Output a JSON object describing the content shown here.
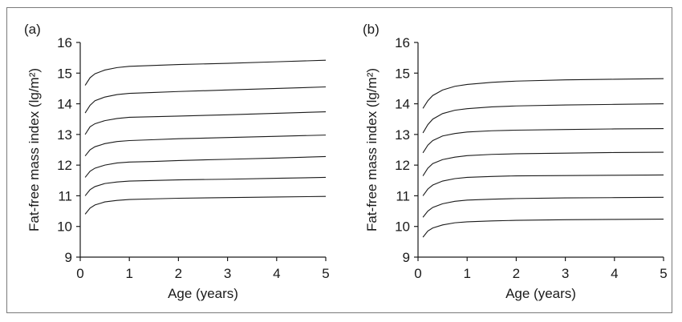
{
  "chart_data": [
    {
      "type": "line",
      "panel_label": "(a)",
      "xlabel": "Age (years)",
      "ylabel": "Fat-free mass index (lg/m²)",
      "xlim": [
        0,
        5
      ],
      "ylim": [
        9,
        16
      ],
      "x_ticks": [
        "0",
        "1",
        "2",
        "3",
        "4",
        "5"
      ],
      "y_ticks": [
        "9",
        "10",
        "11",
        "12",
        "13",
        "14",
        "15",
        "16"
      ],
      "grid": false,
      "x": [
        0.1,
        0.2,
        0.3,
        0.5,
        0.75,
        1,
        1.5,
        2,
        3,
        4,
        5
      ],
      "series": [
        {
          "values": [
            10.4,
            10.6,
            10.7,
            10.8,
            10.85,
            10.88,
            10.9,
            10.92,
            10.94,
            10.96,
            10.98
          ]
        },
        {
          "values": [
            11.0,
            11.2,
            11.3,
            11.4,
            11.45,
            11.48,
            11.5,
            11.52,
            11.54,
            11.57,
            11.6
          ]
        },
        {
          "values": [
            11.6,
            11.8,
            11.9,
            12.0,
            12.07,
            12.1,
            12.12,
            12.15,
            12.19,
            12.23,
            12.28
          ]
        },
        {
          "values": [
            12.3,
            12.5,
            12.6,
            12.7,
            12.77,
            12.8,
            12.83,
            12.86,
            12.9,
            12.94,
            12.98
          ]
        },
        {
          "values": [
            13.0,
            13.25,
            13.35,
            13.45,
            13.52,
            13.56,
            13.58,
            13.6,
            13.64,
            13.69,
            13.74
          ]
        },
        {
          "values": [
            13.7,
            13.95,
            14.1,
            14.22,
            14.3,
            14.34,
            14.37,
            14.4,
            14.45,
            14.5,
            14.55
          ]
        },
        {
          "values": [
            14.6,
            14.85,
            14.98,
            15.1,
            15.18,
            15.22,
            15.25,
            15.28,
            15.32,
            15.37,
            15.42
          ]
        }
      ]
    },
    {
      "type": "line",
      "panel_label": "(b)",
      "xlabel": "Age (years)",
      "ylabel": "Fat-free mass index (lg/m²)",
      "xlim": [
        0,
        5
      ],
      "ylim": [
        9,
        16
      ],
      "x_ticks": [
        "0",
        "1",
        "2",
        "3",
        "4",
        "5"
      ],
      "y_ticks": [
        "9",
        "10",
        "11",
        "12",
        "13",
        "14",
        "15",
        "16"
      ],
      "grid": false,
      "x": [
        0.1,
        0.2,
        0.3,
        0.5,
        0.75,
        1,
        1.5,
        2,
        3,
        4,
        5
      ],
      "series": [
        {
          "values": [
            9.65,
            9.85,
            9.95,
            10.05,
            10.12,
            10.15,
            10.18,
            10.2,
            10.22,
            10.23,
            10.24
          ]
        },
        {
          "values": [
            10.3,
            10.5,
            10.62,
            10.74,
            10.82,
            10.86,
            10.89,
            10.91,
            10.93,
            10.94,
            10.95
          ]
        },
        {
          "values": [
            11.0,
            11.22,
            11.35,
            11.48,
            11.56,
            11.6,
            11.63,
            11.65,
            11.66,
            11.67,
            11.68
          ]
        },
        {
          "values": [
            11.65,
            11.9,
            12.05,
            12.18,
            12.26,
            12.31,
            12.35,
            12.37,
            12.39,
            12.41,
            12.42
          ]
        },
        {
          "values": [
            12.4,
            12.65,
            12.8,
            12.95,
            13.03,
            13.08,
            13.12,
            13.14,
            13.16,
            13.18,
            13.19
          ]
        },
        {
          "values": [
            13.05,
            13.32,
            13.5,
            13.68,
            13.79,
            13.84,
            13.9,
            13.93,
            13.96,
            13.98,
            14.0
          ]
        },
        {
          "values": [
            13.85,
            14.1,
            14.27,
            14.45,
            14.57,
            14.63,
            14.7,
            14.74,
            14.78,
            14.8,
            14.82
          ]
        }
      ]
    }
  ]
}
